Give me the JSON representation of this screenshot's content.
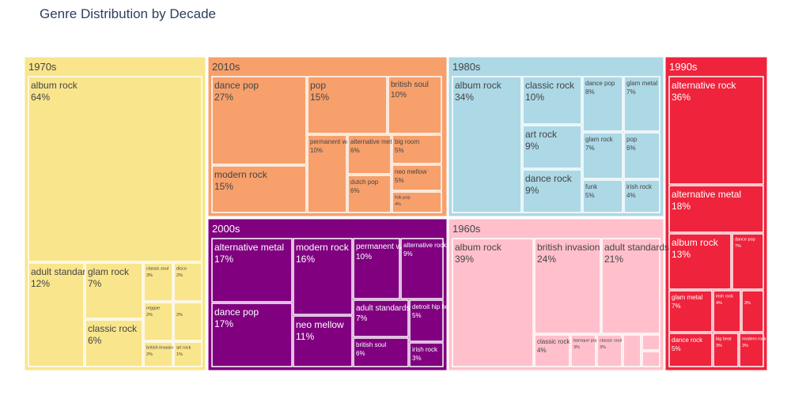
{
  "chart_data": {
    "type": "treemap",
    "title": "Genre Distribution by Decade",
    "decades": [
      {
        "name": "1970s",
        "color": "#f9e58c",
        "label_color": "#444444",
        "genres": [
          {
            "name": "album rock",
            "pct": "64%"
          },
          {
            "name": "adult standards",
            "pct": "12%"
          },
          {
            "name": "glam rock",
            "pct": "7%"
          },
          {
            "name": "classic rock",
            "pct": "6%"
          },
          {
            "name": "classic soul",
            "pct": "3%"
          },
          {
            "name": "reggae",
            "pct": "2%"
          },
          {
            "name": "british invasion",
            "pct": "2%"
          },
          {
            "name": "disco",
            "pct": "2%"
          },
          {
            "name": "",
            "pct": "2%"
          },
          {
            "name": "art rock",
            "pct": "1%"
          }
        ]
      },
      {
        "name": "2010s",
        "color": "#f7a06b",
        "label_color": "#444444",
        "genres": [
          {
            "name": "dance pop",
            "pct": "27%"
          },
          {
            "name": "modern rock",
            "pct": "15%"
          },
          {
            "name": "pop",
            "pct": "15%"
          },
          {
            "name": "permanent wave",
            "pct": "10%"
          },
          {
            "name": "alternative metal",
            "pct": "6%"
          },
          {
            "name": "dutch pop",
            "pct": "6%"
          },
          {
            "name": "british soul",
            "pct": "10%"
          },
          {
            "name": "big room",
            "pct": "5%"
          },
          {
            "name": "neo mellow",
            "pct": "5%"
          },
          {
            "name": "folk-pop",
            "pct": "4%"
          }
        ]
      },
      {
        "name": "1980s",
        "color": "#add8e6",
        "label_color": "#444444",
        "genres": [
          {
            "name": "album rock",
            "pct": "34%"
          },
          {
            "name": "classic rock",
            "pct": "10%"
          },
          {
            "name": "art rock",
            "pct": "9%"
          },
          {
            "name": "dance rock",
            "pct": "9%"
          },
          {
            "name": "dance pop",
            "pct": "8%"
          },
          {
            "name": "glam rock",
            "pct": "7%"
          },
          {
            "name": "glam metal",
            "pct": "7%"
          },
          {
            "name": "pop",
            "pct": "6%"
          },
          {
            "name": "funk",
            "pct": "5%"
          },
          {
            "name": "irish rock",
            "pct": "4%"
          }
        ]
      },
      {
        "name": "1990s",
        "color": "#ef233c",
        "label_color": "#ffffff",
        "genres": [
          {
            "name": "alternative rock",
            "pct": "36%"
          },
          {
            "name": "alternative metal",
            "pct": "18%"
          },
          {
            "name": "album rock",
            "pct": "13%"
          },
          {
            "name": "dance pop",
            "pct": "7%"
          },
          {
            "name": "glam metal",
            "pct": "7%"
          },
          {
            "name": "irish rock",
            "pct": "4%"
          },
          {
            "name": "",
            "pct": "3%"
          },
          {
            "name": "dance rock",
            "pct": "5%"
          },
          {
            "name": "big beat",
            "pct": "3%"
          },
          {
            "name": "modern rock",
            "pct": "3%"
          }
        ]
      },
      {
        "name": "2000s",
        "color": "#800080",
        "label_color": "#ffffff",
        "genres": [
          {
            "name": "alternative metal",
            "pct": "17%"
          },
          {
            "name": "dance pop",
            "pct": "17%"
          },
          {
            "name": "modern rock",
            "pct": "16%"
          },
          {
            "name": "neo mellow",
            "pct": "11%"
          },
          {
            "name": "permanent wave",
            "pct": "10%"
          },
          {
            "name": "alternative rock",
            "pct": "9%"
          },
          {
            "name": "adult standards",
            "pct": "7%"
          },
          {
            "name": "detroit hip hop",
            "pct": "5%"
          },
          {
            "name": "british soul",
            "pct": "6%"
          },
          {
            "name": "irish rock",
            "pct": "3%"
          }
        ]
      },
      {
        "name": "1960s",
        "color": "#ffc0cb",
        "label_color": "#444444",
        "genres": [
          {
            "name": "album rock",
            "pct": "39%"
          },
          {
            "name": "british invasion",
            "pct": "24%"
          },
          {
            "name": "adult standards",
            "pct": "21%"
          },
          {
            "name": "classic rock",
            "pct": "4%"
          },
          {
            "name": "baroque pop",
            "pct": "3%"
          },
          {
            "name": "classic soul",
            "pct": "3%"
          },
          {
            "name": "",
            "pct": ""
          },
          {
            "name": "",
            "pct": ""
          },
          {
            "name": "",
            "pct": ""
          }
        ]
      }
    ]
  }
}
